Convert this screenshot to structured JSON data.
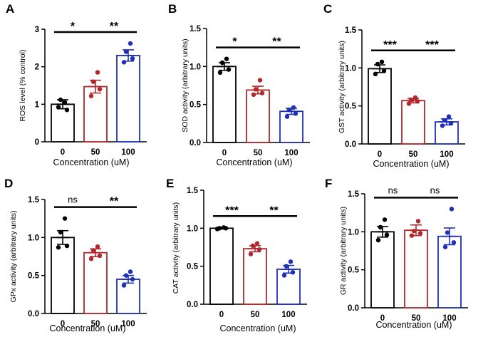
{
  "figure": {
    "panels": [
      {
        "letter": "A",
        "ylabel": "ROS level (% control)",
        "xlabel": "Concentration (uM)",
        "yticks": [
          0,
          1,
          2,
          3
        ],
        "ylim": [
          0,
          3
        ],
        "categories": [
          "0",
          "50",
          "100"
        ],
        "means": [
          1.0,
          1.47,
          2.3
        ],
        "sems": [
          0.12,
          0.17,
          0.15
        ],
        "points": [
          [
            0.92,
            0.85,
            1.12,
            1.05
          ],
          [
            1.22,
            1.4,
            1.6,
            1.85
          ],
          [
            2.12,
            2.22,
            2.4,
            2.62
          ]
        ],
        "comparisons": [
          {
            "label": "*"
          },
          {
            "label": "**"
          }
        ]
      },
      {
        "letter": "B",
        "ylabel": "SOD activity (arbitrary units)",
        "xlabel": "Concentration (uM)",
        "yticks": [
          "0.0",
          "0.5",
          "1.0",
          "1.5"
        ],
        "ylim": [
          0,
          1.5
        ],
        "categories": [
          "0",
          "50",
          "100"
        ],
        "means": [
          1.0,
          0.69,
          0.41
        ],
        "sems": [
          0.05,
          0.05,
          0.04
        ],
        "points": [
          [
            0.92,
            0.96,
            1.05,
            1.1
          ],
          [
            0.63,
            0.65,
            0.7,
            0.82
          ],
          [
            0.34,
            0.38,
            0.43,
            0.46
          ]
        ],
        "comparisons": [
          {
            "label": "*"
          },
          {
            "label": "**"
          }
        ]
      },
      {
        "letter": "C",
        "ylabel": "GST activity (arbitrary units)",
        "xlabel": "Concentration (uM)",
        "yticks": [
          "0.0",
          "0.5",
          "1.0",
          "1.5"
        ],
        "ylim": [
          0,
          1.5
        ],
        "categories": [
          "0",
          "50",
          "100"
        ],
        "means": [
          0.99,
          0.57,
          0.29
        ],
        "sems": [
          0.05,
          0.03,
          0.04
        ],
        "points": [
          [
            0.92,
            0.96,
            1.05,
            1.08
          ],
          [
            0.53,
            0.56,
            0.58,
            0.61
          ],
          [
            0.24,
            0.27,
            0.31,
            0.36
          ]
        ],
        "comparisons": [
          {
            "label": "***"
          },
          {
            "label": "***"
          }
        ]
      },
      {
        "letter": "D",
        "ylabel": "GPx activity (arbitrary units)",
        "xlabel": "Concentration (uM)",
        "yticks": [
          "0.0",
          "0.5",
          "1.0",
          "1.5"
        ],
        "ylim": [
          0,
          1.5
        ],
        "categories": [
          "0",
          "50",
          "100"
        ],
        "means": [
          1.0,
          0.8,
          0.45
        ],
        "sems": [
          0.09,
          0.05,
          0.05
        ],
        "points": [
          [
            0.87,
            0.89,
            1.07,
            1.25
          ],
          [
            0.72,
            0.76,
            0.83,
            0.88
          ],
          [
            0.37,
            0.45,
            0.5,
            0.55
          ]
        ],
        "comparisons": [
          {
            "label": "ns"
          },
          {
            "label": "**"
          }
        ]
      },
      {
        "letter": "E",
        "ylabel": "CAT activity (arbitrary units)",
        "xlabel": "Concentration (uM)",
        "yticks": [
          "0.0",
          "0.5",
          "1.0",
          "1.5"
        ],
        "ylim": [
          0,
          1.5
        ],
        "categories": [
          "0",
          "50",
          "100"
        ],
        "means": [
          1.0,
          0.73,
          0.46
        ],
        "sems": [
          0.01,
          0.04,
          0.05
        ],
        "points": [
          [
            0.99,
            1.0,
            1.0,
            1.01
          ],
          [
            0.66,
            0.72,
            0.77,
            0.8
          ],
          [
            0.38,
            0.42,
            0.5,
            0.56
          ]
        ],
        "comparisons": [
          {
            "label": "***"
          },
          {
            "label": "**"
          }
        ]
      },
      {
        "letter": "F",
        "ylabel": "GR activity (arbitrary units)",
        "xlabel": "Concentration (uM)",
        "yticks": [
          "0.0",
          "0.5",
          "1.0",
          "1.5"
        ],
        "ylim": [
          0,
          1.5
        ],
        "categories": [
          "0",
          "50",
          "100"
        ],
        "means": [
          1.0,
          1.02,
          0.94
        ],
        "sems": [
          0.07,
          0.07,
          0.11
        ],
        "points": [
          [
            0.89,
            0.96,
            1.06,
            1.16
          ],
          [
            0.95,
            0.98,
            1.01,
            1.14
          ],
          [
            0.8,
            0.86,
            0.99,
            1.3
          ]
        ],
        "comparisons": [
          {
            "label": "ns"
          },
          {
            "label": "ns"
          }
        ]
      }
    ]
  },
  "chart_data": [
    {
      "type": "bar",
      "title": "A",
      "ylabel": "ROS level (% control)",
      "xlabel": "Concentration (uM)",
      "categories": [
        "0",
        "50",
        "100"
      ],
      "values": [
        1.0,
        1.47,
        2.3
      ],
      "ylim": [
        0,
        3
      ]
    },
    {
      "type": "bar",
      "title": "B",
      "ylabel": "SOD activity (arbitrary units)",
      "xlabel": "Concentration (uM)",
      "categories": [
        "0",
        "50",
        "100"
      ],
      "values": [
        1.0,
        0.69,
        0.41
      ],
      "ylim": [
        0,
        1.5
      ]
    },
    {
      "type": "bar",
      "title": "C",
      "ylabel": "GST activity (arbitrary units)",
      "xlabel": "Concentration (uM)",
      "categories": [
        "0",
        "50",
        "100"
      ],
      "values": [
        0.99,
        0.57,
        0.29
      ],
      "ylim": [
        0,
        1.5
      ]
    },
    {
      "type": "bar",
      "title": "D",
      "ylabel": "GPx activity (arbitrary units)",
      "xlabel": "Concentration (uM)",
      "categories": [
        "0",
        "50",
        "100"
      ],
      "values": [
        1.0,
        0.8,
        0.45
      ],
      "ylim": [
        0,
        1.5
      ]
    },
    {
      "type": "bar",
      "title": "E",
      "ylabel": "CAT activity (arbitrary units)",
      "xlabel": "Concentration (uM)",
      "categories": [
        "0",
        "50",
        "100"
      ],
      "values": [
        1.0,
        0.73,
        0.46
      ],
      "ylim": [
        0,
        1.5
      ]
    },
    {
      "type": "bar",
      "title": "F",
      "ylabel": "GR activity (arbitrary units)",
      "xlabel": "Concentration (uM)",
      "categories": [
        "0",
        "50",
        "100"
      ],
      "values": [
        1.0,
        1.02,
        0.94
      ],
      "ylim": [
        0,
        1.5
      ]
    }
  ],
  "colors": {
    "group_0": "#000000",
    "group_50": "#b0282b",
    "group_100": "#1f2fb8",
    "axis": "#000000"
  }
}
